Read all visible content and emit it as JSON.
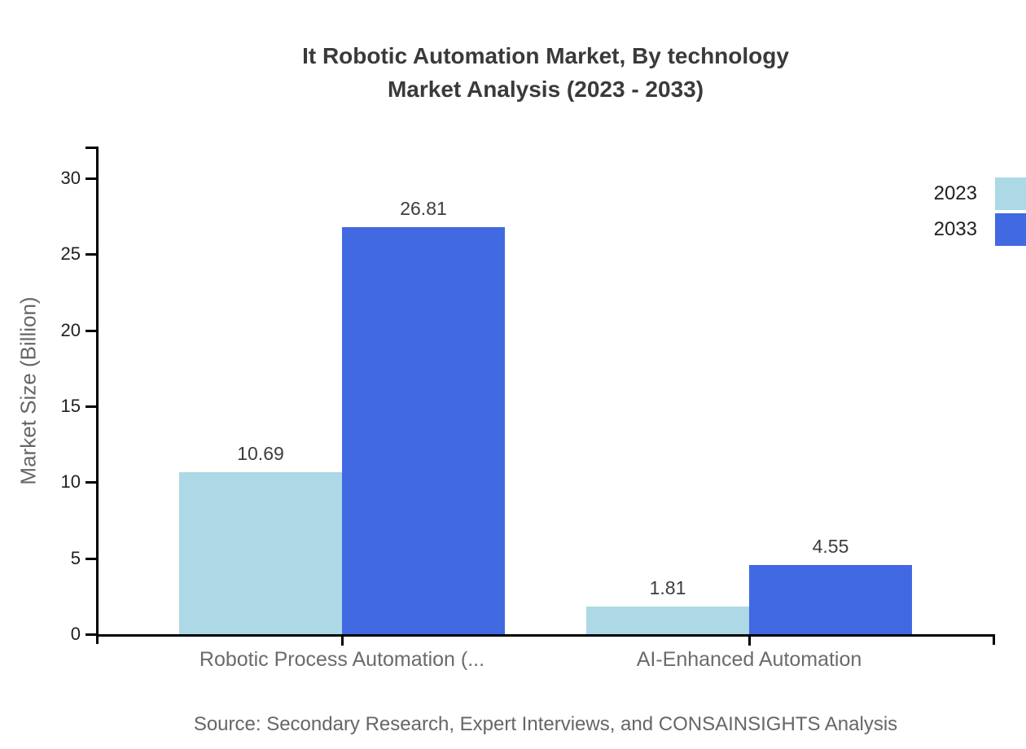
{
  "chart_data": {
    "type": "bar",
    "title_lines": [
      "It Robotic Automation Market, By technology",
      "Market Analysis (2023 - 2033)"
    ],
    "categories": [
      "Robotic Process Automation (...",
      "AI-Enhanced Automation"
    ],
    "series": [
      {
        "name": "2023",
        "color": "#ADD8E6",
        "values": [
          10.69,
          1.81
        ],
        "labels": [
          "10.69",
          "1.81"
        ]
      },
      {
        "name": "2033",
        "color": "#4169E1",
        "values": [
          26.81,
          4.55
        ],
        "labels": [
          "26.81",
          "4.55"
        ]
      }
    ],
    "xlabel": "",
    "ylabel": "Market Size (Billion)",
    "ylim": [
      0,
      32
    ],
    "y_ticks": [
      0,
      5,
      10,
      15,
      20,
      25,
      30
    ],
    "grid": false,
    "legend_position": "top-right",
    "source": "Source: Secondary Research, Expert Interviews, and CONSAINSIGHTS Analysis"
  },
  "colors": {
    "axis": "#000000",
    "tick_label": "#1f1f1f",
    "title_text": "#3a3a3a",
    "value_label": "#3d3d3d",
    "muted_text": "#666666",
    "series_2023": "#ADD8E6",
    "series_2033": "#4169E1"
  }
}
